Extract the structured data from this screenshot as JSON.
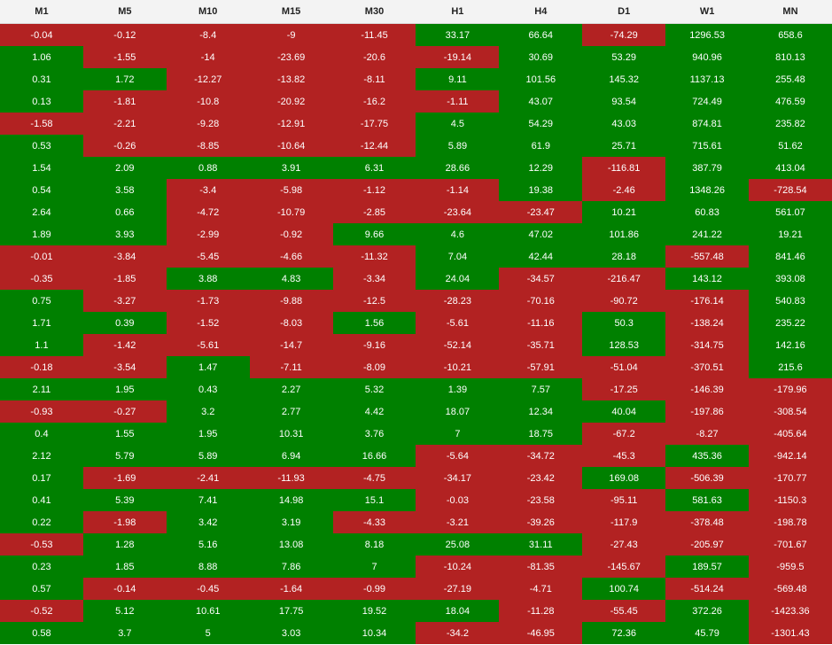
{
  "table": {
    "columns": [
      "M1",
      "M5",
      "M10",
      "M15",
      "M30",
      "H1",
      "H4",
      "D1",
      "W1",
      "MN"
    ],
    "rows": [
      [
        "-0.04",
        "-0.12",
        "-8.4",
        "-9",
        "-11.45",
        "33.17",
        "66.64",
        "-74.29",
        "1296.53",
        "658.6"
      ],
      [
        "1.06",
        "-1.55",
        "-14",
        "-23.69",
        "-20.6",
        "-19.14",
        "30.69",
        "53.29",
        "940.96",
        "810.13"
      ],
      [
        "0.31",
        "1.72",
        "-12.27",
        "-13.82",
        "-8.11",
        "9.11",
        "101.56",
        "145.32",
        "1137.13",
        "255.48"
      ],
      [
        "0.13",
        "-1.81",
        "-10.8",
        "-20.92",
        "-16.2",
        "-1.11",
        "43.07",
        "93.54",
        "724.49",
        "476.59"
      ],
      [
        "-1.58",
        "-2.21",
        "-9.28",
        "-12.91",
        "-17.75",
        "4.5",
        "54.29",
        "43.03",
        "874.81",
        "235.82"
      ],
      [
        "0.53",
        "-0.26",
        "-8.85",
        "-10.64",
        "-12.44",
        "5.89",
        "61.9",
        "25.71",
        "715.61",
        "51.62"
      ],
      [
        "1.54",
        "2.09",
        "0.88",
        "3.91",
        "6.31",
        "28.66",
        "12.29",
        "-116.81",
        "387.79",
        "413.04"
      ],
      [
        "0.54",
        "3.58",
        "-3.4",
        "-5.98",
        "-1.12",
        "-1.14",
        "19.38",
        "-2.46",
        "1348.26",
        "-728.54"
      ],
      [
        "2.64",
        "0.66",
        "-4.72",
        "-10.79",
        "-2.85",
        "-23.64",
        "-23.47",
        "10.21",
        "60.83",
        "561.07"
      ],
      [
        "1.89",
        "3.93",
        "-2.99",
        "-0.92",
        "9.66",
        "4.6",
        "47.02",
        "101.86",
        "241.22",
        "19.21"
      ],
      [
        "-0.01",
        "-3.84",
        "-5.45",
        "-4.66",
        "-11.32",
        "7.04",
        "42.44",
        "28.18",
        "-557.48",
        "841.46"
      ],
      [
        "-0.35",
        "-1.85",
        "3.88",
        "4.83",
        "-3.34",
        "24.04",
        "-34.57",
        "-216.47",
        "143.12",
        "393.08"
      ],
      [
        "0.75",
        "-3.27",
        "-1.73",
        "-9.88",
        "-12.5",
        "-28.23",
        "-70.16",
        "-90.72",
        "-176.14",
        "540.83"
      ],
      [
        "1.71",
        "0.39",
        "-1.52",
        "-8.03",
        "1.56",
        "-5.61",
        "-11.16",
        "50.3",
        "-138.24",
        "235.22"
      ],
      [
        "1.1",
        "-1.42",
        "-5.61",
        "-14.7",
        "-9.16",
        "-52.14",
        "-35.71",
        "128.53",
        "-314.75",
        "142.16"
      ],
      [
        "-0.18",
        "-3.54",
        "1.47",
        "-7.11",
        "-8.09",
        "-10.21",
        "-57.91",
        "-51.04",
        "-370.51",
        "215.6"
      ],
      [
        "2.11",
        "1.95",
        "0.43",
        "2.27",
        "5.32",
        "1.39",
        "7.57",
        "-17.25",
        "-146.39",
        "-179.96"
      ],
      [
        "-0.93",
        "-0.27",
        "3.2",
        "2.77",
        "4.42",
        "18.07",
        "12.34",
        "40.04",
        "-197.86",
        "-308.54"
      ],
      [
        "0.4",
        "1.55",
        "1.95",
        "10.31",
        "3.76",
        "7",
        "18.75",
        "-67.2",
        "-8.27",
        "-405.64"
      ],
      [
        "2.12",
        "5.79",
        "5.89",
        "6.94",
        "16.66",
        "-5.64",
        "-34.72",
        "-45.3",
        "435.36",
        "-942.14"
      ],
      [
        "0.17",
        "-1.69",
        "-2.41",
        "-11.93",
        "-4.75",
        "-34.17",
        "-23.42",
        "169.08",
        "-506.39",
        "-170.77"
      ],
      [
        "0.41",
        "5.39",
        "7.41",
        "14.98",
        "15.1",
        "-0.03",
        "-23.58",
        "-95.11",
        "581.63",
        "-1150.3"
      ],
      [
        "0.22",
        "-1.98",
        "3.42",
        "3.19",
        "-4.33",
        "-3.21",
        "-39.26",
        "-117.9",
        "-378.48",
        "-198.78"
      ],
      [
        "-0.53",
        "1.28",
        "5.16",
        "13.08",
        "8.18",
        "25.08",
        "31.11",
        "-27.43",
        "-205.97",
        "-701.67"
      ],
      [
        "0.23",
        "1.85",
        "8.88",
        "7.86",
        "7",
        "-10.24",
        "-81.35",
        "-145.67",
        "189.57",
        "-959.5"
      ],
      [
        "0.57",
        "-0.14",
        "-0.45",
        "-1.64",
        "-0.99",
        "-27.19",
        "-4.71",
        "100.74",
        "-514.24",
        "-569.48"
      ],
      [
        "-0.52",
        "5.12",
        "10.61",
        "17.75",
        "19.52",
        "18.04",
        "-11.28",
        "-55.45",
        "372.26",
        "-1423.36"
      ],
      [
        "0.58",
        "3.7",
        "5",
        "3.03",
        "10.34",
        "-34.2",
        "-46.95",
        "72.36",
        "45.79",
        "-1301.43"
      ]
    ]
  },
  "colors": {
    "positive": "#008000",
    "negative": "#b22222",
    "header_bg": "#f3f3f3",
    "header_text": "#222222",
    "cell_text": "#ffffff"
  }
}
